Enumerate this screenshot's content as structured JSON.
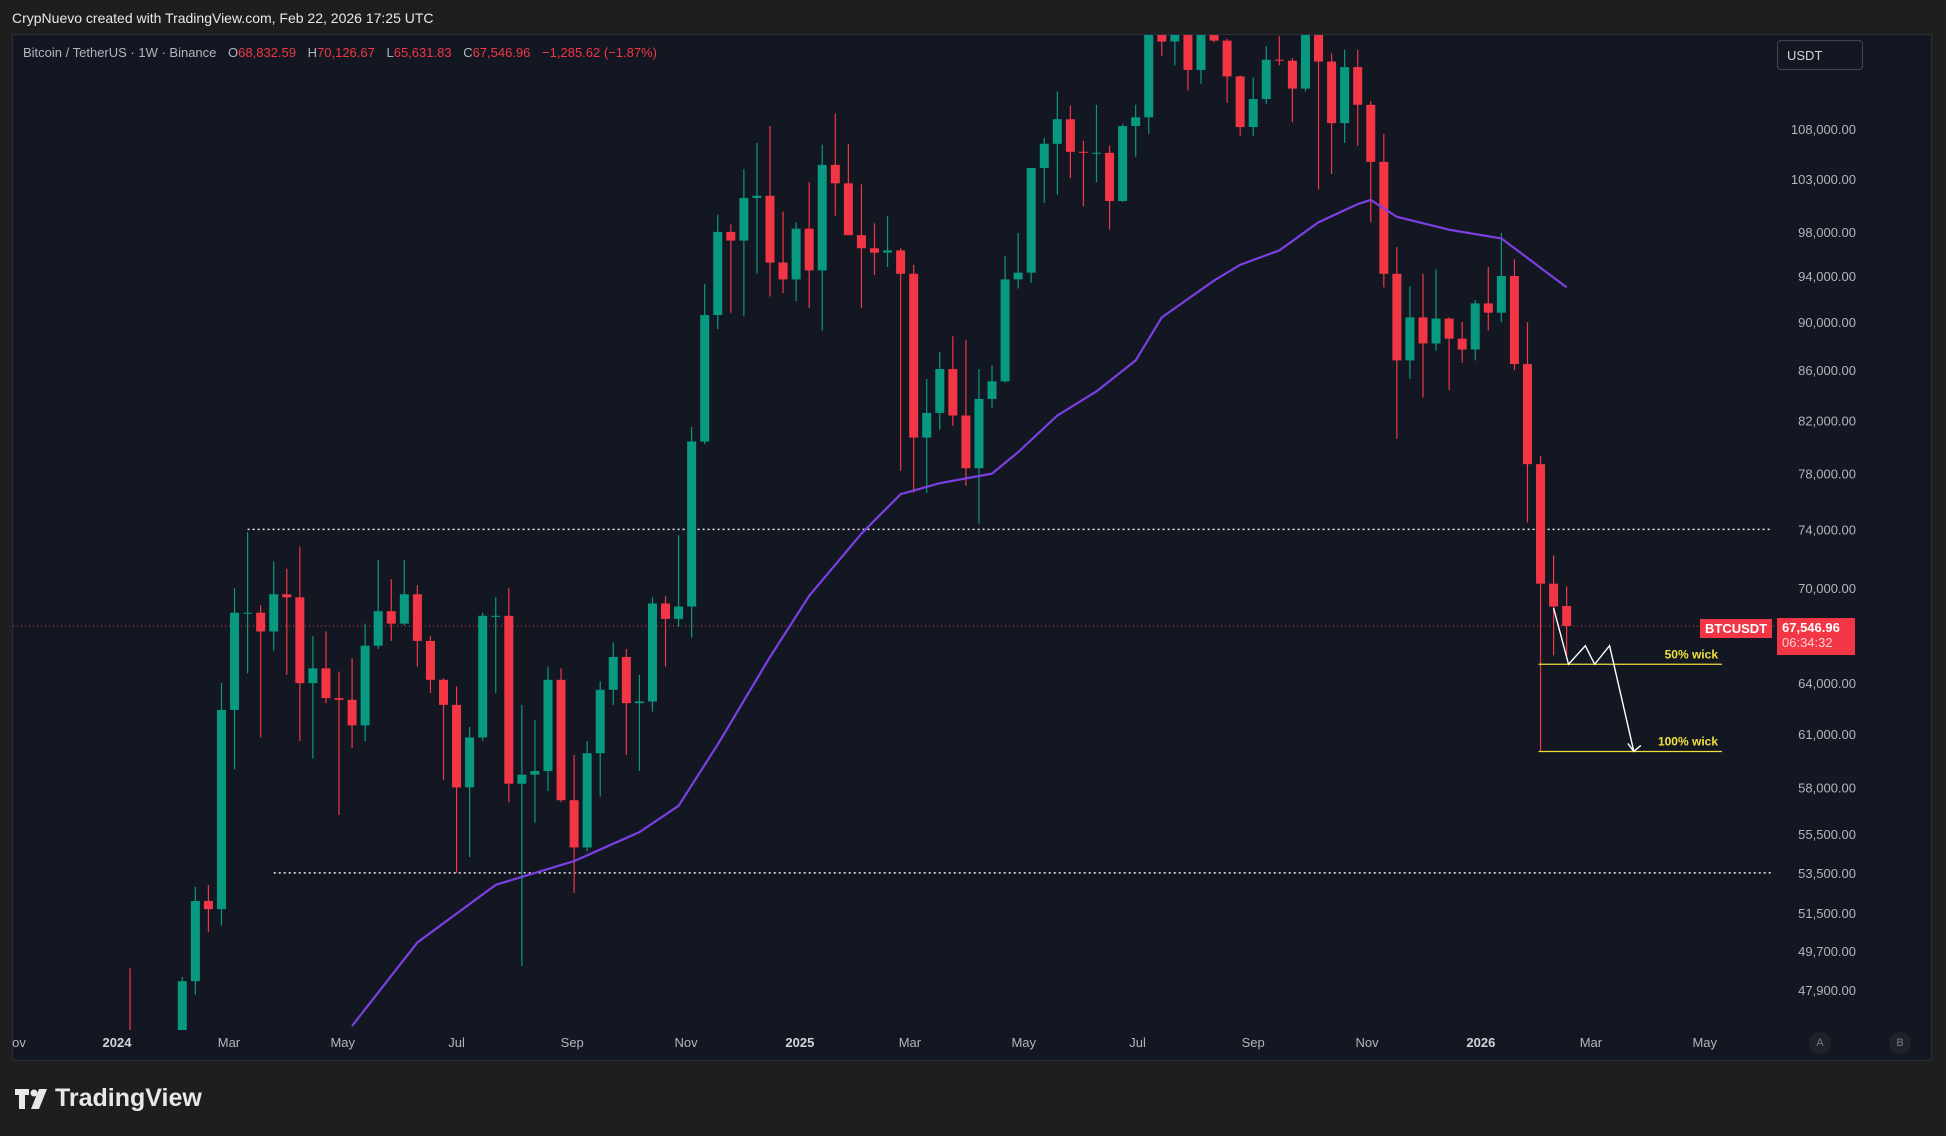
{
  "banner": "CrypNuevo created with TradingView.com, Feb 22, 2026 17:25 UTC",
  "legend": {
    "symbol": "Bitcoin / TetherUS · 1W · Binance",
    "o_label": "O",
    "o": "68,832.59",
    "h_label": "H",
    "h": "70,126.67",
    "l_label": "L",
    "l": "65,631.83",
    "c_label": "C",
    "c": "67,546.96",
    "change": "−1,285.62 (−1.87%)"
  },
  "currency_button": "USDT",
  "price_tag": {
    "symbol": "BTCUSDT",
    "price": "67,546.96",
    "countdown": "06:34:32"
  },
  "scale_buttons": [
    "A",
    "B"
  ],
  "logo": {
    "icon": "tradingview-logo-icon",
    "text": "TradingView"
  },
  "colors": {
    "up": "#089981",
    "down": "#f23645",
    "ma": "#7b3fe4",
    "level": "#f0e03c",
    "background": "#131722"
  },
  "chart_data": {
    "type": "candlestick",
    "interval": "1W",
    "start": "2024-01-01",
    "y_scale": "log",
    "grid": false,
    "candles_ohlc": [
      [
        42300,
        45900,
        40800,
        43900
      ],
      [
        43900,
        48900,
        41500,
        41700
      ],
      [
        41700,
        43500,
        40500,
        41600
      ],
      [
        41600,
        42300,
        38500,
        42000
      ],
      [
        42000,
        43800,
        41900,
        42600
      ],
      [
        42600,
        48500,
        42300,
        48300
      ],
      [
        48300,
        52800,
        47700,
        52100
      ],
      [
        52100,
        52900,
        50600,
        51700
      ],
      [
        51700,
        64000,
        50900,
        62400
      ],
      [
        62400,
        70000,
        59000,
        68400
      ],
      [
        68400,
        73800,
        64600,
        68400
      ],
      [
        68400,
        68900,
        60800,
        67200
      ],
      [
        67200,
        71800,
        66000,
        69600
      ],
      [
        69600,
        71300,
        64500,
        69400
      ],
      [
        69400,
        72800,
        60600,
        64000
      ],
      [
        64000,
        66900,
        59600,
        64900
      ],
      [
        64900,
        67200,
        62800,
        63100
      ],
      [
        63100,
        64700,
        56500,
        63000
      ],
      [
        63000,
        65500,
        60200,
        61500
      ],
      [
        61500,
        67700,
        60600,
        66300
      ],
      [
        66300,
        71900,
        66100,
        68500
      ],
      [
        68500,
        70600,
        66600,
        67700
      ],
      [
        67700,
        71900,
        67600,
        69600
      ],
      [
        69600,
        70200,
        65000,
        66600
      ],
      [
        66600,
        66900,
        63400,
        64200
      ],
      [
        64200,
        64300,
        58400,
        62700
      ],
      [
        62700,
        63800,
        53500,
        58000
      ],
      [
        58000,
        61400,
        54300,
        60800
      ],
      [
        60800,
        68400,
        60600,
        68200
      ],
      [
        68200,
        69400,
        63400,
        68200
      ],
      [
        68200,
        70000,
        57200,
        58200
      ],
      [
        58200,
        62700,
        49000,
        58700
      ],
      [
        58700,
        61800,
        56100,
        58900
      ],
      [
        58900,
        65000,
        57800,
        64200
      ],
      [
        64200,
        64900,
        57200,
        57300
      ],
      [
        57300,
        59800,
        52500,
        54800
      ],
      [
        54800,
        60600,
        54600,
        59900
      ],
      [
        59900,
        64100,
        57500,
        63600
      ],
      [
        63600,
        66500,
        62700,
        65600
      ],
      [
        65600,
        66100,
        59800,
        62800
      ],
      [
        62800,
        64500,
        58900,
        62900
      ],
      [
        62900,
        69400,
        62300,
        69000
      ],
      [
        69000,
        69500,
        65000,
        68000
      ],
      [
        68000,
        73600,
        67500,
        68800
      ],
      [
        68800,
        81500,
        66800,
        80400
      ],
      [
        80400,
        93300,
        80200,
        90600
      ],
      [
        90600,
        99600,
        89400,
        98000
      ],
      [
        98000,
        98700,
        90800,
        97200
      ],
      [
        97200,
        104000,
        90500,
        101200
      ],
      [
        101200,
        106600,
        94200,
        101400
      ],
      [
        101400,
        108300,
        92200,
        95200
      ],
      [
        95200,
        99900,
        92500,
        93700
      ],
      [
        93700,
        98900,
        91800,
        98300
      ],
      [
        98300,
        102700,
        91200,
        94500
      ],
      [
        94500,
        106400,
        89300,
        104400
      ],
      [
        104400,
        109600,
        99500,
        102600
      ],
      [
        102600,
        106500,
        97800,
        97700
      ],
      [
        97700,
        102500,
        91200,
        96500
      ],
      [
        96500,
        98800,
        94100,
        96100
      ],
      [
        96100,
        99500,
        94800,
        96300
      ],
      [
        96300,
        96500,
        78200,
        94200
      ],
      [
        94200,
        95000,
        76600,
        80700
      ],
      [
        80700,
        85300,
        76600,
        82600
      ],
      [
        82600,
        87500,
        81300,
        86100
      ],
      [
        86100,
        88800,
        81600,
        82400
      ],
      [
        82400,
        88500,
        77100,
        78400
      ],
      [
        78400,
        86100,
        74400,
        83700
      ],
      [
        83700,
        86400,
        83000,
        85100
      ],
      [
        85100,
        95800,
        85000,
        93700
      ],
      [
        93700,
        97900,
        92900,
        94300
      ],
      [
        94300,
        104100,
        93400,
        104100
      ],
      [
        104100,
        107100,
        100700,
        106500
      ],
      [
        106500,
        111900,
        101500,
        109000
      ],
      [
        109000,
        110400,
        103100,
        105700
      ],
      [
        105700,
        106800,
        100400,
        105600
      ],
      [
        105600,
        110500,
        102700,
        105600
      ],
      [
        105600,
        106300,
        98200,
        100900
      ],
      [
        100900,
        108500,
        100800,
        108300
      ],
      [
        108300,
        110500,
        105200,
        109200
      ],
      [
        109200,
        119500,
        107500,
        119100
      ],
      [
        119100,
        123200,
        115700,
        117300
      ],
      [
        117300,
        120200,
        114700,
        119400
      ],
      [
        119400,
        119800,
        112000,
        114200
      ],
      [
        114200,
        119300,
        112700,
        119300
      ],
      [
        119300,
        124500,
        117200,
        117400
      ],
      [
        117400,
        117600,
        110700,
        113500
      ],
      [
        113500,
        113600,
        107300,
        108200
      ],
      [
        108200,
        113400,
        107300,
        111100
      ],
      [
        111100,
        116800,
        110600,
        115300
      ],
      [
        115300,
        117900,
        114700,
        115200
      ],
      [
        115200,
        115500,
        108700,
        112200
      ],
      [
        112200,
        125700,
        111900,
        123500
      ],
      [
        123500,
        126200,
        102000,
        115100
      ],
      [
        115100,
        116000,
        103500,
        108600
      ],
      [
        108600,
        116400,
        106600,
        114500
      ],
      [
        114500,
        116400,
        106300,
        110500
      ],
      [
        110500,
        110900,
        98900,
        104700
      ],
      [
        104700,
        107500,
        93000,
        94200
      ],
      [
        94200,
        96600,
        80600,
        86800
      ],
      [
        86800,
        93100,
        85300,
        90400
      ],
      [
        90400,
        94200,
        83800,
        88200
      ],
      [
        88200,
        94600,
        87600,
        90300
      ],
      [
        90300,
        90400,
        84400,
        88600
      ],
      [
        88600,
        90000,
        86600,
        87700
      ],
      [
        87700,
        91900,
        86800,
        91600
      ],
      [
        91600,
        94800,
        89300,
        90800
      ],
      [
        90800,
        97900,
        90000,
        94000
      ],
      [
        94000,
        95500,
        86000,
        86500
      ],
      [
        86500,
        90000,
        74500,
        78700
      ],
      [
        78700,
        79300,
        60000,
        70300
      ],
      [
        70300,
        72200,
        65700,
        68800
      ],
      [
        68832.59,
        70126.67,
        65631.83,
        67546.96
      ]
    ],
    "moving_average": [
      [
        "2024-05-06",
        46300
      ],
      [
        "2024-06-10",
        50100
      ],
      [
        "2024-07-22",
        52900
      ],
      [
        "2024-09-02",
        54100
      ],
      [
        "2024-10-07",
        55600
      ],
      [
        "2024-10-28",
        57000
      ],
      [
        "2024-11-18",
        60400
      ],
      [
        "2024-12-16",
        65600
      ],
      [
        "2025-01-06",
        69500
      ],
      [
        "2025-02-03",
        73700
      ],
      [
        "2025-02-24",
        76500
      ],
      [
        "2025-03-17",
        77300
      ],
      [
        "2025-04-14",
        78000
      ],
      [
        "2025-04-28",
        79600
      ],
      [
        "2025-05-19",
        82400
      ],
      [
        "2025-06-09",
        84300
      ],
      [
        "2025-06-30",
        86800
      ],
      [
        "2025-07-14",
        90400
      ],
      [
        "2025-08-11",
        93600
      ],
      [
        "2025-08-25",
        95000
      ],
      [
        "2025-09-15",
        96300
      ],
      [
        "2025-10-06",
        98900
      ],
      [
        "2025-10-27",
        100600
      ],
      [
        "2025-11-03",
        101000
      ],
      [
        "2025-11-17",
        99400
      ],
      [
        "2025-12-15",
        98200
      ],
      [
        "2026-01-12",
        97400
      ],
      [
        "2026-02-16",
        93000
      ]
    ],
    "horizontal_levels": [
      {
        "price": 74000,
        "from": "2024-03-11",
        "style": "dotted"
      },
      {
        "price": 53500,
        "from": "2024-03-25",
        "style": "dotted"
      }
    ],
    "current_price": 67546.96,
    "wick_levels": [
      {
        "label": "50% wick",
        "price": 65150,
        "from": "2026-02-02",
        "to": "2026-05-04"
      },
      {
        "label": "100% wick",
        "price": 60000,
        "from": "2026-02-02",
        "to": "2026-05-04"
      }
    ],
    "projection": [
      [
        "2026-02-09",
        68700
      ],
      [
        "2026-02-17",
        65150
      ],
      [
        "2026-02-26",
        66300
      ],
      [
        "2026-03-03",
        65150
      ],
      [
        "2026-03-11",
        66300
      ],
      [
        "2026-03-24",
        60000
      ]
    ],
    "y_ticks": [
      "108,000.00",
      "103,000.00",
      "98,000.00",
      "94,000.00",
      "90,000.00",
      "86,000.00",
      "82,000.00",
      "78,000.00",
      "74,000.00",
      "70,000.00",
      "64,000.00",
      "61,000.00",
      "58,000.00",
      "55,500.00",
      "53,500.00",
      "51,500.00",
      "49,700.00",
      "47,900.00"
    ],
    "x_ticks": [
      {
        "label": "ov",
        "date": "2023-11-01",
        "bold": false
      },
      {
        "label": "2024",
        "date": "2024-01-01",
        "bold": true
      },
      {
        "label": "Mar",
        "date": "2024-03-01",
        "bold": false
      },
      {
        "label": "May",
        "date": "2024-05-01",
        "bold": false
      },
      {
        "label": "Jul",
        "date": "2024-07-01",
        "bold": false
      },
      {
        "label": "Sep",
        "date": "2024-09-01",
        "bold": false
      },
      {
        "label": "Nov",
        "date": "2024-11-01",
        "bold": false
      },
      {
        "label": "2025",
        "date": "2025-01-01",
        "bold": true
      },
      {
        "label": "Mar",
        "date": "2025-03-01",
        "bold": false
      },
      {
        "label": "May",
        "date": "2025-05-01",
        "bold": false
      },
      {
        "label": "Jul",
        "date": "2025-07-01",
        "bold": false
      },
      {
        "label": "Sep",
        "date": "2025-09-01",
        "bold": false
      },
      {
        "label": "Nov",
        "date": "2025-11-01",
        "bold": false
      },
      {
        "label": "2026",
        "date": "2026-01-01",
        "bold": true
      },
      {
        "label": "Mar",
        "date": "2026-03-01",
        "bold": false
      },
      {
        "label": "May",
        "date": "2026-05-01",
        "bold": false
      }
    ]
  }
}
